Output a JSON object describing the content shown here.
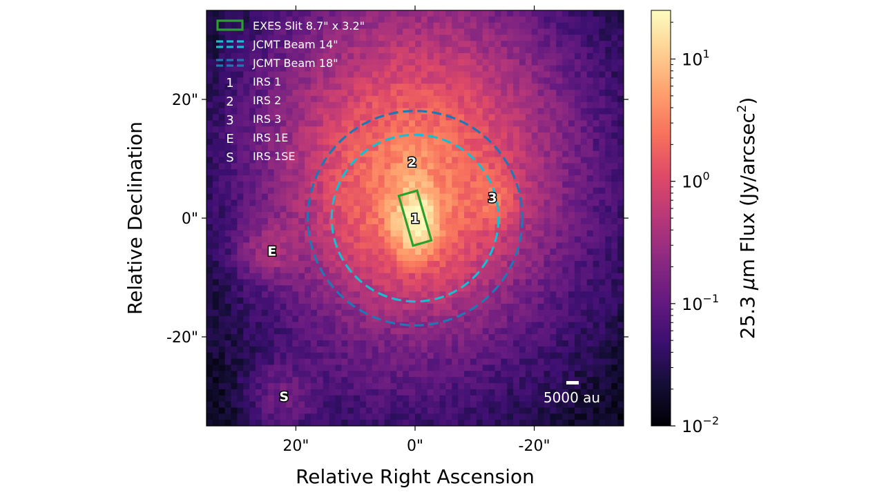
{
  "chart_data": {
    "type": "heatmap",
    "description_kind": "astronomical image",
    "xlabel": "Relative Right Ascension",
    "ylabel": "Relative Declination",
    "x_ticks": [
      {
        "value": 20,
        "label": "20\""
      },
      {
        "value": 0,
        "label": "0\""
      },
      {
        "value": -20,
        "label": "-20\""
      }
    ],
    "y_ticks": [
      {
        "value": 20,
        "label": "20\""
      },
      {
        "value": 0,
        "label": "0\""
      },
      {
        "value": -20,
        "label": "-20\""
      }
    ],
    "xlim": [
      35,
      -35
    ],
    "ylim": [
      -35,
      35
    ],
    "colorbar": {
      "label_prefix": "25.3 ",
      "label_mu": "μ",
      "label_mid": "m Flux (Jy/arcsec",
      "label_sup": "2",
      "label_end": ")",
      "scale": "log",
      "range": [
        0.01,
        25
      ],
      "ticks": [
        {
          "value": 10,
          "base": "10",
          "exp": "1"
        },
        {
          "value": 1,
          "base": "10",
          "exp": "0"
        },
        {
          "value": 0.1,
          "base": "10",
          "exp": "−1"
        },
        {
          "value": 0.01,
          "base": "10",
          "exp": "−2"
        }
      ],
      "colormap": "magma"
    },
    "sources": [
      {
        "id": "1",
        "name": "IRS 1",
        "ra": 0,
        "dec": 0,
        "peak": 22
      },
      {
        "id": "2",
        "name": "IRS 2",
        "ra": 0.5,
        "dec": 9.5,
        "peak": 4
      },
      {
        "id": "3",
        "name": "IRS 3",
        "ra": -13,
        "dec": 3.5,
        "peak": 2
      },
      {
        "id": "E",
        "name": "IRS 1E",
        "ra": 24,
        "dec": -5.5,
        "peak": 0.35
      },
      {
        "id": "S",
        "name": "IRS 1SE",
        "ra": 22,
        "dec": -30,
        "peak": 0.12
      }
    ],
    "overlays": [
      {
        "kind": "slit",
        "label": "EXES Slit 8.7\" x 3.2\"",
        "length": 8.7,
        "width": 3.2,
        "center": [
          0,
          0
        ],
        "color": "#2ca02c"
      },
      {
        "kind": "beam",
        "label": "JCMT Beam 14\"",
        "radius": 14,
        "center": [
          0,
          0
        ],
        "color": "#17becf"
      },
      {
        "kind": "beam",
        "label": "JCMT Beam 18\"",
        "radius": 18,
        "center": [
          0,
          0
        ],
        "color": "#1f77b4"
      }
    ],
    "scale_bar": {
      "label": "5000 au"
    },
    "legend_location": "top-left"
  }
}
